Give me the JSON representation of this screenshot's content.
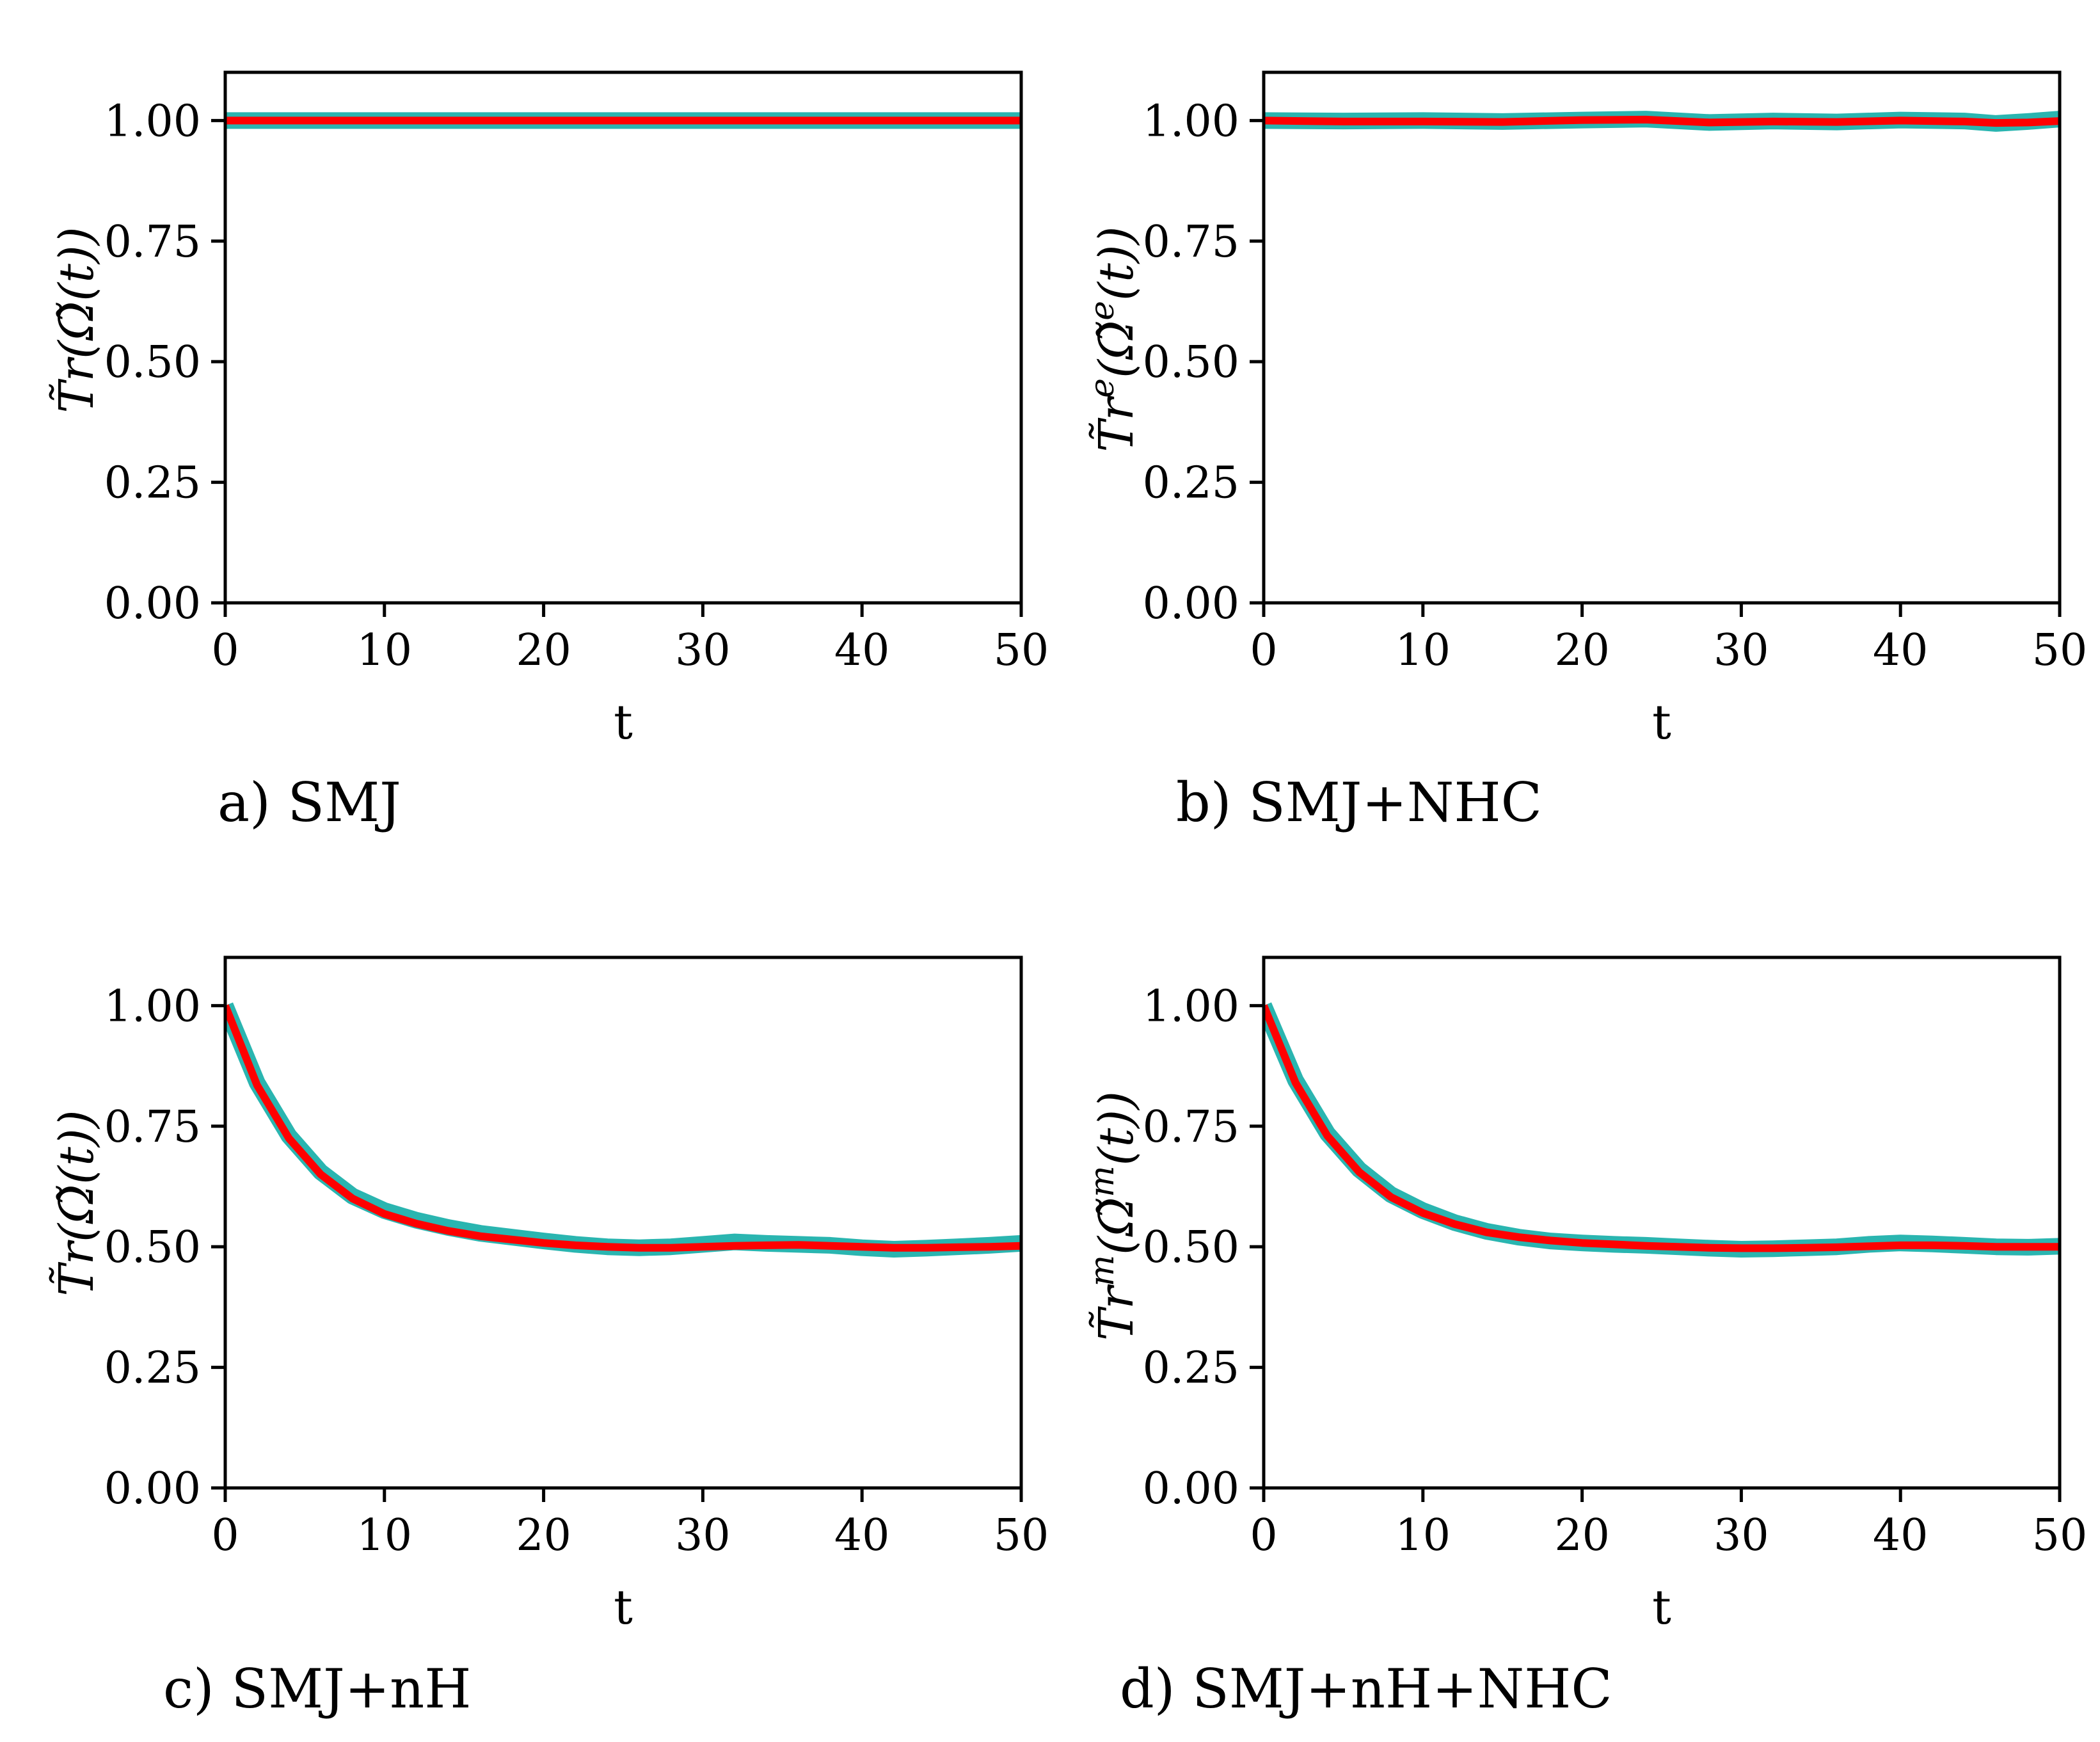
{
  "chart_data": [
    {
      "panel": "a",
      "type": "line",
      "caption": "a) SMJ",
      "xlabel": "t",
      "ylabel": "T̃r(Ω̃(t))",
      "xlim": [
        0,
        50
      ],
      "ylim": [
        0,
        1.1
      ],
      "xticks": [
        0,
        10,
        20,
        30,
        40,
        50
      ],
      "yticks": [
        "0.00",
        "0.25",
        "0.50",
        "0.75",
        "1.00"
      ],
      "series": [
        {
          "name": "band",
          "color": "#2ab5b0",
          "x": [
            0,
            10,
            20,
            30,
            40,
            50
          ],
          "y": [
            1.0,
            1.0,
            1.0,
            1.0,
            1.0,
            1.0
          ]
        },
        {
          "name": "mean",
          "color": "#ff0000",
          "x": [
            0,
            10,
            20,
            30,
            40,
            50
          ],
          "y": [
            1.0,
            1.0,
            1.0,
            1.0,
            1.0,
            1.0
          ]
        }
      ]
    },
    {
      "panel": "b",
      "type": "line",
      "caption": "b) SMJ+NHC",
      "xlabel": "t",
      "ylabel": "T̃r^e(Ω̃^e(t))",
      "xlim": [
        0,
        50
      ],
      "ylim": [
        0,
        1.1
      ],
      "xticks": [
        0,
        10,
        20,
        30,
        40,
        50
      ],
      "yticks": [
        "0.00",
        "0.25",
        "0.50",
        "0.75",
        "1.00"
      ],
      "series": [
        {
          "name": "band",
          "color": "#2ab5b0",
          "x": [
            0,
            5,
            10,
            15,
            20,
            24,
            28,
            32,
            36,
            40,
            44,
            46,
            48,
            50
          ],
          "y": [
            1.0,
            0.999,
            1.0,
            0.998,
            1.001,
            1.003,
            0.996,
            0.999,
            0.997,
            1.001,
            0.999,
            0.994,
            0.998,
            1.003
          ]
        },
        {
          "name": "mean",
          "color": "#ff0000",
          "x": [
            0,
            5,
            10,
            15,
            20,
            24,
            28,
            32,
            36,
            40,
            44,
            46,
            48,
            50
          ],
          "y": [
            1.0,
            0.998,
            0.998,
            0.997,
            1.001,
            1.002,
            0.996,
            0.998,
            0.997,
            1.0,
            0.998,
            0.995,
            0.996,
            0.999
          ]
        }
      ]
    },
    {
      "panel": "c",
      "type": "line",
      "caption": "c) SMJ+nH",
      "xlabel": "t",
      "ylabel": "T̃r(Ω̃(t))",
      "xlim": [
        0,
        50
      ],
      "ylim": [
        0,
        1.1
      ],
      "xticks": [
        0,
        10,
        20,
        30,
        40,
        50
      ],
      "yticks": [
        "0.00",
        "0.25",
        "0.50",
        "0.75",
        "1.00"
      ],
      "series": [
        {
          "name": "band",
          "color": "#2ab5b0",
          "x": [
            0,
            2,
            4,
            6,
            8,
            10,
            12,
            14,
            16,
            18,
            20,
            22,
            24,
            26,
            28,
            30,
            32,
            34,
            36,
            38,
            40,
            42,
            44,
            46,
            48,
            50
          ],
          "y": [
            1.0,
            0.84,
            0.73,
            0.655,
            0.605,
            0.575,
            0.555,
            0.54,
            0.528,
            0.52,
            0.512,
            0.505,
            0.5,
            0.498,
            0.5,
            0.505,
            0.51,
            0.507,
            0.505,
            0.503,
            0.498,
            0.495,
            0.497,
            0.5,
            0.503,
            0.507
          ]
        },
        {
          "name": "mean",
          "color": "#ff0000",
          "x": [
            0,
            2,
            4,
            6,
            8,
            10,
            12,
            14,
            16,
            18,
            20,
            22,
            24,
            26,
            28,
            30,
            32,
            34,
            36,
            38,
            40,
            42,
            44,
            46,
            48,
            50
          ],
          "y": [
            1.0,
            0.835,
            0.725,
            0.65,
            0.6,
            0.568,
            0.548,
            0.533,
            0.522,
            0.515,
            0.508,
            0.503,
            0.5,
            0.498,
            0.498,
            0.5,
            0.502,
            0.503,
            0.504,
            0.502,
            0.5,
            0.498,
            0.498,
            0.499,
            0.5,
            0.502
          ]
        }
      ]
    },
    {
      "panel": "d",
      "type": "line",
      "caption": "d) SMJ+nH+NHC",
      "xlabel": "t",
      "ylabel": "T̃r^m(Ω̃^m(t))",
      "xlim": [
        0,
        50
      ],
      "ylim": [
        0,
        1.1
      ],
      "xticks": [
        0,
        10,
        20,
        30,
        40,
        50
      ],
      "yticks": [
        "0.00",
        "0.25",
        "0.50",
        "0.75",
        "1.00"
      ],
      "series": [
        {
          "name": "band",
          "color": "#2ab5b0",
          "x": [
            0,
            2,
            4,
            6,
            8,
            10,
            12,
            14,
            16,
            18,
            20,
            22,
            24,
            26,
            28,
            30,
            32,
            34,
            36,
            38,
            40,
            42,
            44,
            46,
            48,
            50
          ],
          "y": [
            1.0,
            0.845,
            0.735,
            0.66,
            0.608,
            0.575,
            0.55,
            0.532,
            0.52,
            0.512,
            0.508,
            0.505,
            0.503,
            0.5,
            0.497,
            0.495,
            0.496,
            0.498,
            0.5,
            0.505,
            0.508,
            0.506,
            0.503,
            0.5,
            0.499,
            0.501
          ]
        },
        {
          "name": "mean",
          "color": "#ff0000",
          "x": [
            0,
            2,
            4,
            6,
            8,
            10,
            12,
            14,
            16,
            18,
            20,
            22,
            24,
            26,
            28,
            30,
            32,
            34,
            36,
            38,
            40,
            42,
            44,
            46,
            48,
            50
          ],
          "y": [
            1.0,
            0.84,
            0.73,
            0.655,
            0.603,
            0.57,
            0.547,
            0.53,
            0.52,
            0.513,
            0.508,
            0.505,
            0.502,
            0.5,
            0.498,
            0.497,
            0.497,
            0.498,
            0.499,
            0.501,
            0.503,
            0.503,
            0.502,
            0.5,
            0.5,
            0.5
          ]
        }
      ]
    }
  ]
}
